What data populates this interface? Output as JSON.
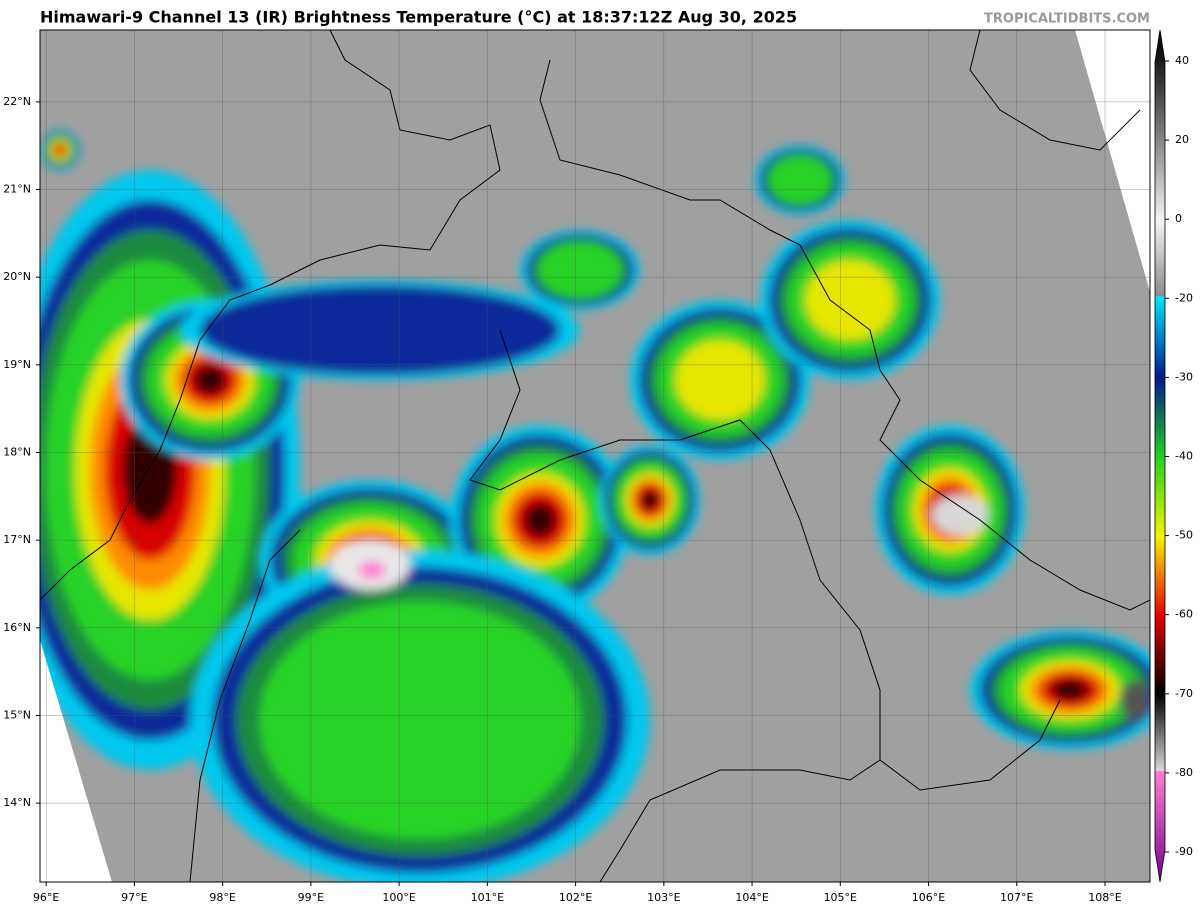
{
  "header": {
    "title": "Himawari-9 Channel 13 (IR) Brightness Temperature (°C) at 18:37:12Z Aug 30, 2025",
    "credit": "TROPICALTIDBITS.COM"
  },
  "map": {
    "xlim": [
      95.93,
      108.51
    ],
    "ylim": [
      13.1,
      22.82
    ],
    "lat_ticks": [
      {
        "value": 22,
        "label": "22°N"
      },
      {
        "value": 21,
        "label": "21°N"
      },
      {
        "value": 20,
        "label": "20°N"
      },
      {
        "value": 19,
        "label": "19°N"
      },
      {
        "value": 18,
        "label": "18°N"
      },
      {
        "value": 17,
        "label": "17°N"
      },
      {
        "value": 16,
        "label": "16°N"
      },
      {
        "value": 15,
        "label": "15°N"
      },
      {
        "value": 14,
        "label": "14°N"
      }
    ],
    "lon_ticks": [
      {
        "value": 96,
        "label": "96°E"
      },
      {
        "value": 97,
        "label": "97°E"
      },
      {
        "value": 98,
        "label": "98°E"
      },
      {
        "value": 99,
        "label": "99°E"
      },
      {
        "value": 100,
        "label": "100°E"
      },
      {
        "value": 101,
        "label": "101°E"
      },
      {
        "value": 102,
        "label": "102°E"
      },
      {
        "value": 103,
        "label": "103°E"
      },
      {
        "value": 104,
        "label": "104°E"
      },
      {
        "value": 105,
        "label": "105°E"
      },
      {
        "value": 106,
        "label": "106°E"
      },
      {
        "value": 107,
        "label": "107°E"
      },
      {
        "value": 108,
        "label": "108°E"
      }
    ]
  },
  "colorbar": {
    "ticks": [
      40,
      20,
      0,
      -20,
      -30,
      -40,
      -50,
      -60,
      -70,
      -80,
      -90
    ]
  }
}
